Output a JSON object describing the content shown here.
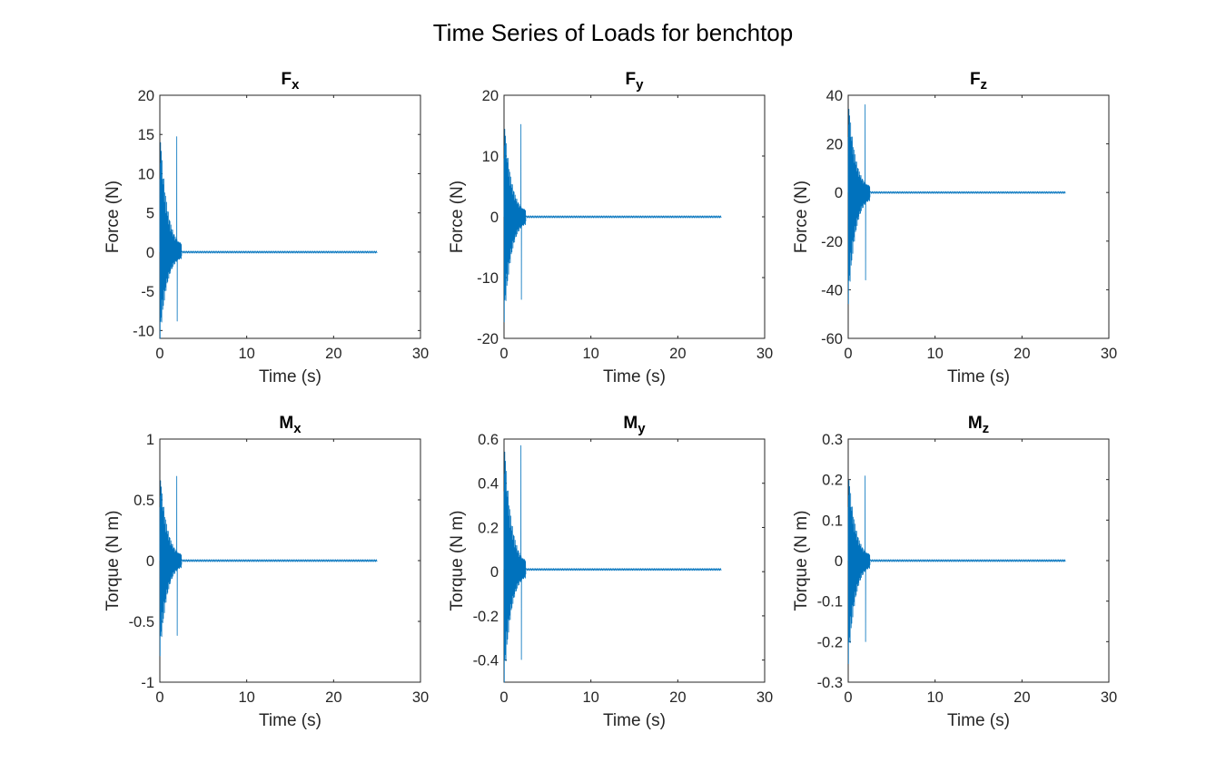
{
  "figure": {
    "title": "Time Series of Loads for benchtop",
    "line_color": "#0072BD"
  },
  "chart_data": [
    {
      "type": "line",
      "title": "F",
      "title_subscript": "x",
      "xlabel": "Time (s)",
      "ylabel": "Force (N)",
      "xlim": [
        0,
        30
      ],
      "ylim": [
        -11,
        20
      ],
      "xticks": [
        0,
        10,
        20,
        30
      ],
      "yticks": [
        -10,
        -5,
        0,
        5,
        10,
        15,
        20
      ],
      "grid": false,
      "series": [
        {
          "x": [
            0,
            25
          ],
          "y": [
            0,
            0
          ],
          "peak_positive": 15.5,
          "peak_negative": -11,
          "decay_end_s": 2.5,
          "steady_value": 0
        }
      ]
    },
    {
      "type": "line",
      "title": "F",
      "title_subscript": "y",
      "xlabel": "Time (s)",
      "ylabel": "Force (N)",
      "xlim": [
        0,
        30
      ],
      "ylim": [
        -20,
        20
      ],
      "xticks": [
        0,
        10,
        20,
        30
      ],
      "yticks": [
        -20,
        -10,
        0,
        10,
        20
      ],
      "grid": false,
      "series": [
        {
          "x": [
            0,
            25
          ],
          "y": [
            0,
            0
          ],
          "peak_positive": 16,
          "peak_negative": -17,
          "decay_end_s": 2.5,
          "steady_value": 0
        }
      ]
    },
    {
      "type": "line",
      "title": "F",
      "title_subscript": "z",
      "xlabel": "Time (s)",
      "ylabel": "Force (N)",
      "xlim": [
        0,
        30
      ],
      "ylim": [
        -60,
        40
      ],
      "xticks": [
        0,
        10,
        20,
        30
      ],
      "yticks": [
        -60,
        -40,
        -20,
        0,
        20,
        40
      ],
      "grid": false,
      "series": [
        {
          "x": [
            0,
            25
          ],
          "y": [
            0,
            0
          ],
          "peak_positive": 38,
          "peak_negative": -45,
          "decay_end_s": 2.5,
          "steady_value": 0
        }
      ]
    },
    {
      "type": "line",
      "title": "M",
      "title_subscript": "x",
      "xlabel": "Time (s)",
      "ylabel": "Torque (N m)",
      "xlim": [
        0,
        30
      ],
      "ylim": [
        -1,
        1
      ],
      "xticks": [
        0,
        10,
        20,
        30
      ],
      "yticks": [
        -1,
        -0.5,
        0,
        0.5,
        1
      ],
      "grid": false,
      "series": [
        {
          "x": [
            0,
            25
          ],
          "y": [
            0,
            0
          ],
          "peak_positive": 0.73,
          "peak_negative": -0.77,
          "decay_end_s": 2.5,
          "steady_value": 0
        }
      ]
    },
    {
      "type": "line",
      "title": "M",
      "title_subscript": "y",
      "xlabel": "Time (s)",
      "ylabel": "Torque (N m)",
      "xlim": [
        0,
        30
      ],
      "ylim": [
        -0.5,
        0.6
      ],
      "xticks": [
        0,
        10,
        20,
        30
      ],
      "yticks": [
        -0.4,
        -0.2,
        0,
        0.2,
        0.4,
        0.6
      ],
      "grid": false,
      "series": [
        {
          "x": [
            0,
            25
          ],
          "y": [
            0.01,
            0.01
          ],
          "peak_positive": 0.6,
          "peak_negative": -0.5,
          "decay_end_s": 2.5,
          "steady_value": 0.01
        }
      ]
    },
    {
      "type": "line",
      "title": "M",
      "title_subscript": "z",
      "xlabel": "Time (s)",
      "ylabel": "Torque (N m)",
      "xlim": [
        0,
        30
      ],
      "ylim": [
        -0.3,
        0.3
      ],
      "xticks": [
        0,
        10,
        20,
        30
      ],
      "yticks": [
        -0.3,
        -0.2,
        -0.1,
        0,
        0.1,
        0.2,
        0.3
      ],
      "grid": false,
      "series": [
        {
          "x": [
            0,
            25
          ],
          "y": [
            0,
            0
          ],
          "peak_positive": 0.22,
          "peak_negative": -0.25,
          "decay_end_s": 2.5,
          "steady_value": 0
        }
      ]
    }
  ]
}
